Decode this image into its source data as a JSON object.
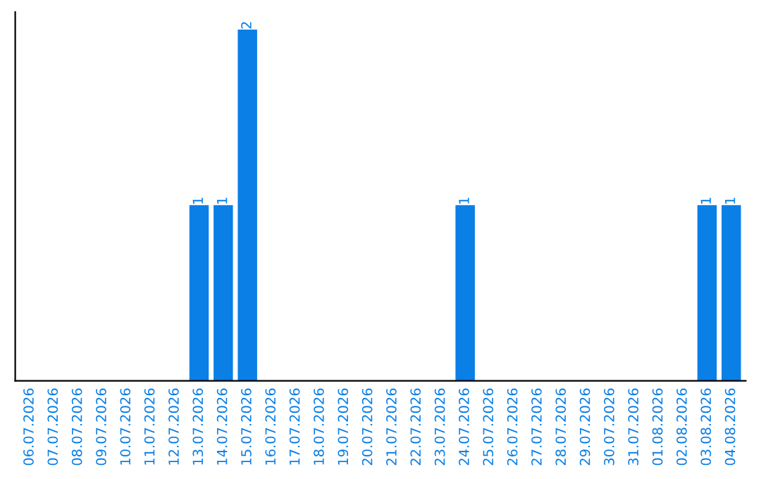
{
  "chart_data": {
    "type": "bar",
    "categories": [
      "06.07.2026",
      "07.07.2026",
      "08.07.2026",
      "09.07.2026",
      "10.07.2026",
      "11.07.2026",
      "12.07.2026",
      "13.07.2026",
      "14.07.2026",
      "15.07.2026",
      "16.07.2026",
      "17.07.2026",
      "18.07.2026",
      "19.07.2026",
      "20.07.2026",
      "21.07.2026",
      "22.07.2026",
      "23.07.2026",
      "24.07.2026",
      "25.07.2026",
      "26.07.2026",
      "27.07.2026",
      "28.07.2026",
      "29.07.2026",
      "30.07.2026",
      "31.07.2026",
      "01.08.2026",
      "02.08.2026",
      "03.08.2026",
      "04.08.2026"
    ],
    "values": [
      0,
      0,
      0,
      0,
      0,
      0,
      0,
      1,
      1,
      2,
      0,
      0,
      0,
      0,
      0,
      0,
      0,
      0,
      1,
      0,
      0,
      0,
      0,
      0,
      0,
      0,
      0,
      0,
      1,
      1
    ],
    "value_labels": [
      null,
      null,
      null,
      null,
      null,
      null,
      null,
      "1",
      "1",
      "2",
      null,
      null,
      null,
      null,
      null,
      null,
      null,
      null,
      "1",
      null,
      null,
      null,
      null,
      null,
      null,
      null,
      null,
      null,
      "1",
      "1"
    ],
    "color": "#0a7fe6",
    "tick_labels": "x",
    "grid": false,
    "legend": false
  }
}
